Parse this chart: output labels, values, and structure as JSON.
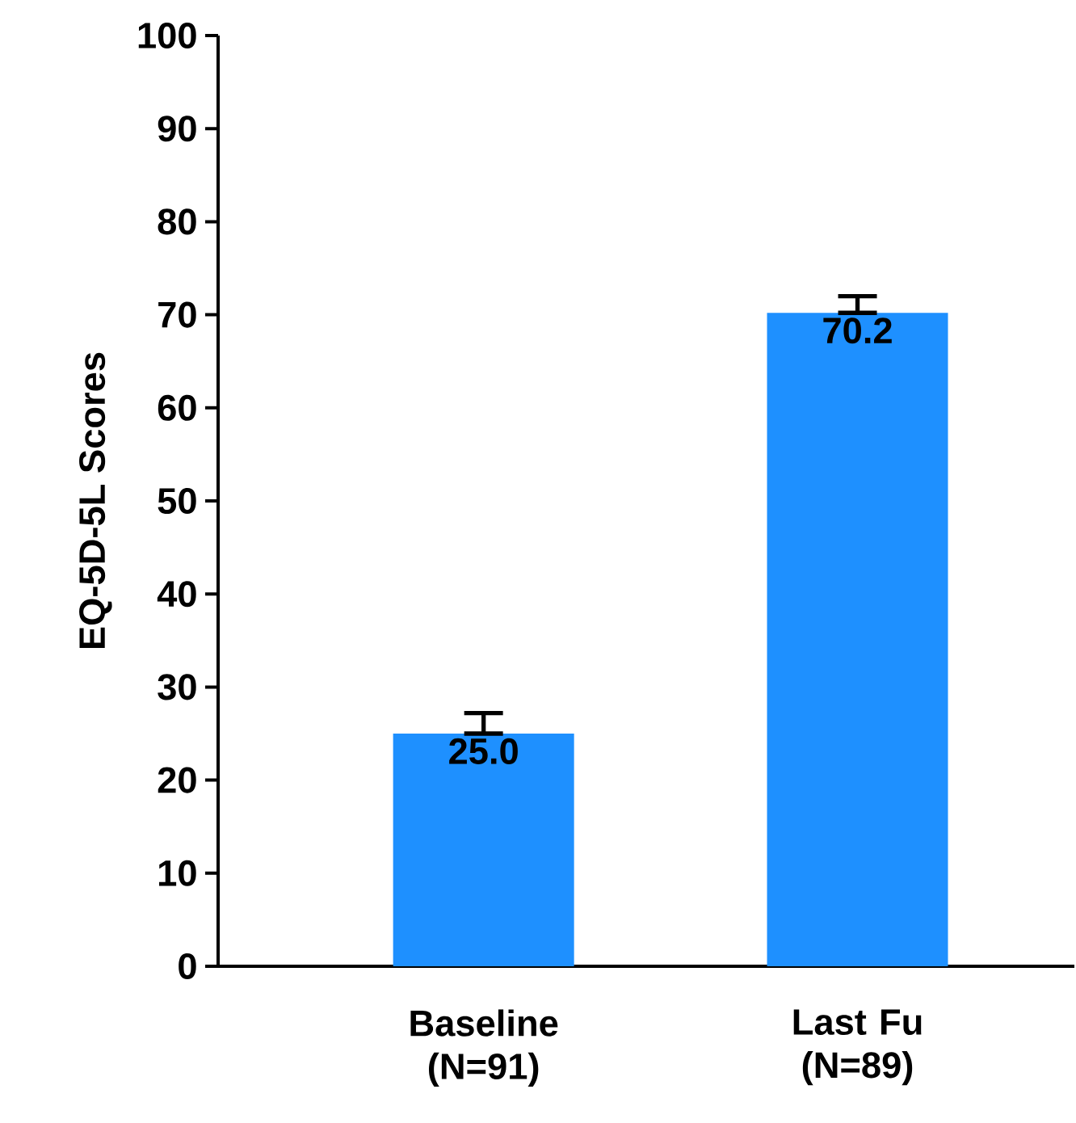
{
  "chart_data": {
    "type": "bar",
    "ylabel": "EQ-5D-5L Scores",
    "categories": [
      "Baseline (N=91)",
      "Last Fu (N=89)"
    ],
    "values": [
      25.0,
      70.2
    ],
    "errors": [
      [
        25.0,
        27.2
      ],
      [
        70.2,
        72.0
      ]
    ],
    "value_labels": [
      "25.0",
      "70.2"
    ],
    "color": "#1e90ff",
    "ylim": [
      0,
      100
    ],
    "yticks": [
      0,
      10,
      20,
      30,
      40,
      50,
      60,
      70,
      80,
      90,
      100
    ],
    "grid": false
  }
}
